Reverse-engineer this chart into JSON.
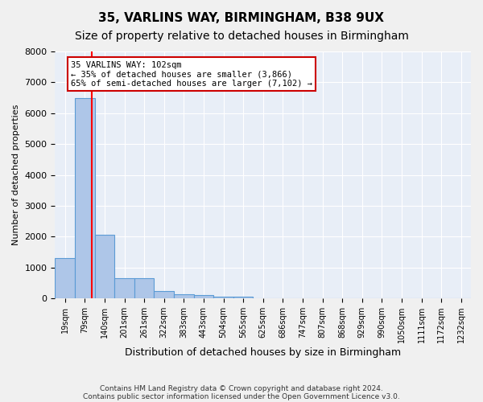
{
  "title": "35, VARLINS WAY, BIRMINGHAM, B38 9UX",
  "subtitle": "Size of property relative to detached houses in Birmingham",
  "xlabel": "Distribution of detached houses by size in Birmingham",
  "ylabel": "Number of detached properties",
  "footer1": "Contains HM Land Registry data © Crown copyright and database right 2024.",
  "footer2": "Contains public sector information licensed under the Open Government Licence v3.0.",
  "bin_labels": [
    "19sqm",
    "79sqm",
    "140sqm",
    "201sqm",
    "261sqm",
    "322sqm",
    "383sqm",
    "443sqm",
    "504sqm",
    "565sqm",
    "625sqm",
    "686sqm",
    "747sqm",
    "807sqm",
    "868sqm",
    "929sqm",
    "990sqm",
    "1050sqm",
    "1111sqm",
    "1172sqm",
    "1232sqm"
  ],
  "bar_values": [
    1300,
    6500,
    2050,
    650,
    650,
    250,
    130,
    100,
    60,
    60,
    0,
    0,
    0,
    0,
    0,
    0,
    0,
    0,
    0,
    0,
    0
  ],
  "bar_color": "#aec6e8",
  "bar_edgecolor": "#5b9bd5",
  "ylim": [
    0,
    8000
  ],
  "yticks": [
    0,
    1000,
    2000,
    3000,
    4000,
    5000,
    6000,
    7000,
    8000
  ],
  "red_line_x": 1.35,
  "annotation_text": "35 VARLINS WAY: 102sqm\n← 35% of detached houses are smaller (3,866)\n65% of semi-detached houses are larger (7,102) →",
  "annotation_box_facecolor": "#ffffff",
  "annotation_box_edgecolor": "#cc0000",
  "plot_bg_color": "#e8eef7",
  "fig_bg_color": "#f0f0f0",
  "grid_color": "#ffffff",
  "title_fontsize": 11,
  "subtitle_fontsize": 10,
  "footer_fontsize": 6.5
}
